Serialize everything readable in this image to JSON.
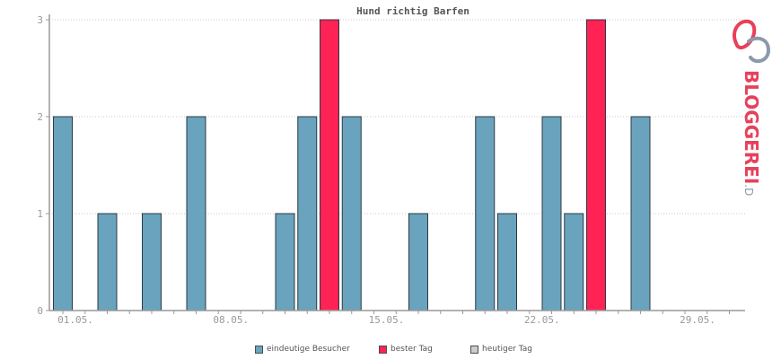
{
  "chart_data": {
    "type": "bar",
    "title": "Hund richtig Barfen",
    "x_ticks": [
      "01.05.",
      "08.05.",
      "15.05.",
      "22.05.",
      "29.05."
    ],
    "y_ticks": [
      "0",
      "1",
      "2",
      "3"
    ],
    "ylim": [
      0,
      3
    ],
    "grid": true,
    "categories": [
      "01.05.",
      "02.05.",
      "03.05.",
      "04.05.",
      "05.05.",
      "06.05.",
      "07.05.",
      "08.05.",
      "09.05.",
      "10.05.",
      "11.05.",
      "12.05.",
      "13.05.",
      "14.05.",
      "15.05.",
      "16.05.",
      "17.05.",
      "18.05.",
      "19.05.",
      "20.05.",
      "21.05.",
      "22.05.",
      "23.05.",
      "24.05.",
      "25.05.",
      "26.05.",
      "27.05.",
      "28.05.",
      "29.05.",
      "30.05.",
      "31.05."
    ],
    "series": [
      {
        "name": "eindeutige Besucher",
        "color": "#6aa3bd",
        "values": [
          2,
          0,
          1,
          0,
          1,
          0,
          2,
          0,
          0,
          0,
          1,
          2,
          0,
          2,
          0,
          0,
          1,
          0,
          0,
          2,
          1,
          0,
          2,
          1,
          0,
          0,
          2,
          0,
          0,
          0,
          0
        ]
      },
      {
        "name": "bester Tag",
        "color": "#ff2255",
        "values": [
          0,
          0,
          0,
          0,
          0,
          0,
          0,
          0,
          0,
          0,
          0,
          0,
          3,
          0,
          0,
          0,
          0,
          0,
          0,
          0,
          0,
          0,
          0,
          0,
          3,
          0,
          0,
          0,
          0,
          0,
          0
        ]
      }
    ],
    "legend": [
      {
        "label": "eindeutige Besucher",
        "color": "#6aa3bd"
      },
      {
        "label": "bester Tag",
        "color": "#ff2255"
      },
      {
        "label": "heutiger Tag",
        "color": "#cccccc"
      }
    ],
    "legend_position": "bottom"
  },
  "brand": {
    "name": "BLOGGEREI",
    "suffix": ".DE",
    "logo_color_a": "#e8405a",
    "logo_color_b": "#8a9aaa"
  }
}
